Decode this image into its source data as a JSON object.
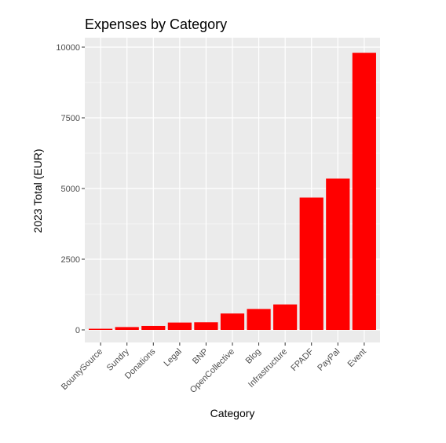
{
  "chart_data": {
    "type": "bar",
    "title": "Expenses by Category",
    "xlabel": "Category",
    "ylabel": "2023 Total (EUR)",
    "categories": [
      "BountySource",
      "Sundry",
      "Donations",
      "Legal",
      "BNP",
      "OpenCollective",
      "Blog",
      "Infrastructure",
      "FPADF",
      "PayPal",
      "Event"
    ],
    "values": [
      40,
      100,
      140,
      260,
      270,
      580,
      740,
      900,
      4680,
      5350,
      9800
    ],
    "ylim": [
      -500,
      10300
    ],
    "yticks": [
      0,
      2500,
      5000,
      7500,
      10000
    ],
    "ytick_labels": [
      "0",
      "2500",
      "5000",
      "7500",
      "10000"
    ],
    "grid": true,
    "colors": {
      "bar": "#ff0000",
      "panel": "#ebebeb",
      "grid": "#ffffff"
    }
  }
}
